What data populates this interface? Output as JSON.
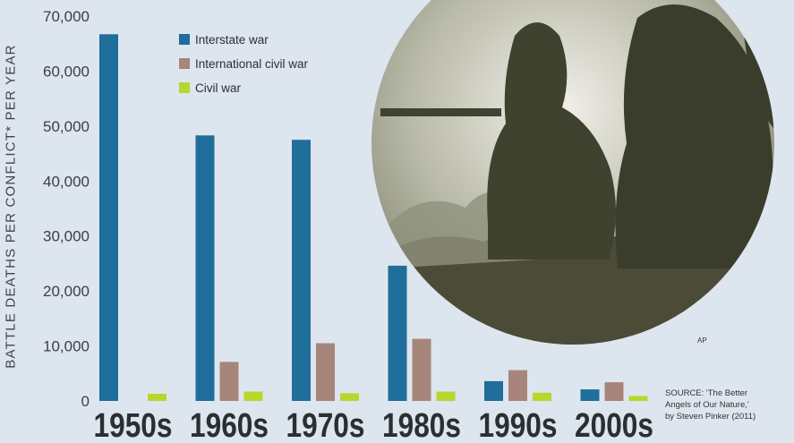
{
  "chart_data": {
    "type": "bar",
    "ylabel": "BATTLE DEATHS PER CONFLICT* PER YEAR",
    "categories": [
      "1950s",
      "1960s",
      "1970s",
      "1980s",
      "1990s",
      "2000s"
    ],
    "series": [
      {
        "name": "Interstate war",
        "color": "#1f6e9b",
        "values": [
          66700,
          48300,
          47500,
          24600,
          3600,
          2100
        ]
      },
      {
        "name": "International civil war",
        "color": "#a7857a",
        "values": [
          0,
          7100,
          10500,
          11300,
          5600,
          3400
        ]
      },
      {
        "name": "Civil war",
        "color": "#b8d62c",
        "values": [
          1300,
          1700,
          1400,
          1700,
          1500,
          900
        ]
      }
    ],
    "ylim": [
      0,
      70000
    ],
    "yticks": [
      "0",
      "10,000",
      "20,000",
      "30,000",
      "40,000",
      "50,000",
      "60,000",
      "70,000"
    ],
    "grid": false,
    "legend": "top-left"
  },
  "photo": {
    "credit": "AP"
  },
  "source": {
    "line1": "SOURCE: 'The Better",
    "line2": "Angels of Our Nature,'",
    "line3": "by Steven Pinker (2011)"
  }
}
